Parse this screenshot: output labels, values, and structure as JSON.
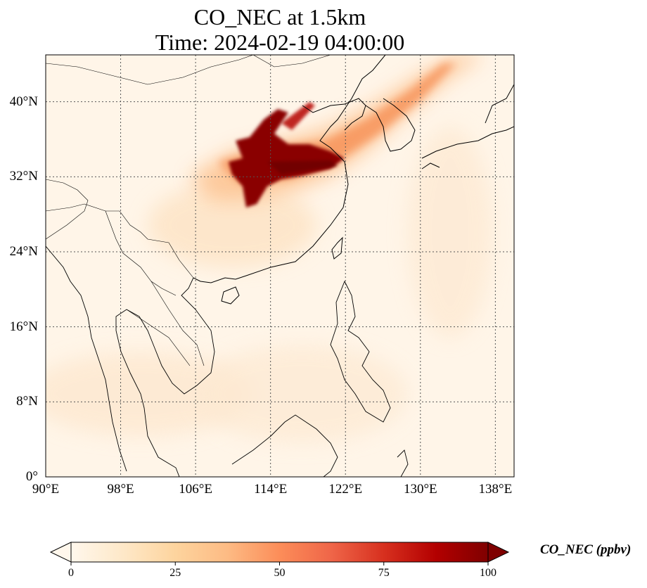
{
  "title": {
    "line1": "CO_NEC at 1.5km",
    "line2": "Time: 2024-02-19 04:00:00"
  },
  "map": {
    "projection": "PlateCarree",
    "lon_range": [
      90,
      140
    ],
    "lat_range": [
      0,
      45
    ],
    "gridlines": "dotted",
    "coastlines": true,
    "borders": true,
    "lat_ticks": [
      "40°N",
      "32°N",
      "24°N",
      "16°N",
      "8°N",
      "0°"
    ],
    "lon_ticks": [
      "90°E",
      "98°E",
      "106°E",
      "114°E",
      "122°E",
      "130°E",
      "138°E"
    ],
    "lat_values": [
      40,
      32,
      24,
      16,
      8,
      0
    ],
    "lon_values": [
      90,
      98,
      106,
      114,
      122,
      130,
      138
    ]
  },
  "field": {
    "variable": "CO_NEC",
    "level": "1.5km",
    "max_region": "Central-east China plume extending northeast toward Korea and Japan"
  },
  "colorbar": {
    "label": "CO_NEC (ppbv)",
    "colormap": "OrRd",
    "colors": [
      "#fff7ec",
      "#fee8c8",
      "#fdd49e",
      "#fdbb84",
      "#fc8d59",
      "#ef6548",
      "#d7301f",
      "#b30000",
      "#7f0000"
    ],
    "ticks": [
      "0",
      "25",
      "50",
      "75",
      "100"
    ],
    "tick_values": [
      0,
      25,
      50,
      75,
      100
    ],
    "range": [
      0,
      100
    ],
    "extend": "both"
  }
}
